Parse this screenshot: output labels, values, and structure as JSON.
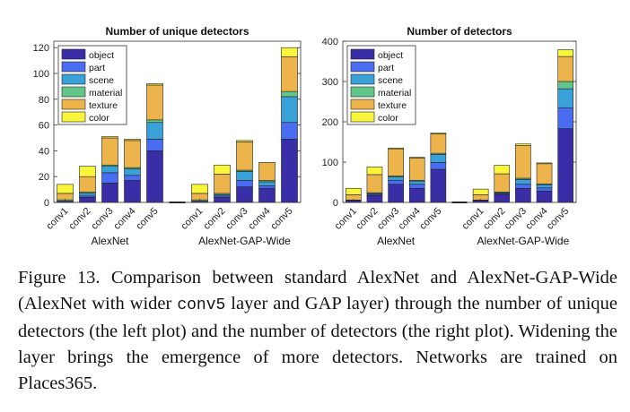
{
  "caption": {
    "p1": "Figure 13. Comparison between standard AlexNet and AlexNet-GAP-Wide (AlexNet with wider ",
    "code": "conv5",
    "p2": " layer and GAP layer) through the number of unique detectors (the left plot) and the number of detectors (the right plot). Widening the layer brings the emergence of more detectors. Networks are trained on Places365."
  },
  "colors": {
    "object": "#3a2ea8",
    "part": "#4a6cf0",
    "scene": "#3aa0d8",
    "material": "#62c58a",
    "texture": "#ecb44a",
    "color": "#f8f53a"
  },
  "chart_data": [
    {
      "type": "bar",
      "stacked": true,
      "title": "Number of unique detectors",
      "ylim": [
        0,
        125
      ],
      "yticks": [
        0,
        20,
        40,
        60,
        80,
        100,
        120
      ],
      "legend_position": "top-left",
      "groups": [
        "AlexNet",
        "AlexNet-GAP-Wide"
      ],
      "categories": [
        "conv1",
        "conv2",
        "conv3",
        "conv4",
        "conv5",
        "conv1",
        "conv2",
        "conv3",
        "conv4",
        "conv5"
      ],
      "series": [
        {
          "name": "object",
          "values": [
            1,
            4,
            15,
            17,
            40,
            1,
            4,
            12,
            11,
            49
          ]
        },
        {
          "name": "part",
          "values": [
            0,
            1,
            8,
            4,
            9,
            0,
            1,
            5,
            2,
            13
          ]
        },
        {
          "name": "scene",
          "values": [
            0,
            2,
            5,
            5,
            13,
            0,
            1,
            7,
            3,
            20
          ]
        },
        {
          "name": "material",
          "values": [
            1,
            1,
            1,
            1,
            2,
            1,
            1,
            1,
            1,
            4
          ]
        },
        {
          "name": "texture",
          "values": [
            5,
            12,
            21,
            21,
            27,
            5,
            15,
            22,
            14,
            27
          ]
        },
        {
          "name": "color",
          "values": [
            7,
            8,
            1,
            1,
            1,
            7,
            7,
            1,
            0,
            7
          ]
        }
      ]
    },
    {
      "type": "bar",
      "stacked": true,
      "title": "Number of detectors",
      "ylim": [
        0,
        400
      ],
      "yticks": [
        0,
        100,
        200,
        300,
        400
      ],
      "legend_position": "top-left",
      "groups": [
        "AlexNet",
        "AlexNet-GAP-Wide"
      ],
      "categories": [
        "conv1",
        "conv2",
        "conv3",
        "conv4",
        "conv5",
        "conv1",
        "conv2",
        "conv3",
        "conv4",
        "conv5"
      ],
      "series": [
        {
          "name": "object",
          "values": [
            5,
            17,
            45,
            35,
            82,
            5,
            20,
            35,
            28,
            183
          ]
        },
        {
          "name": "part",
          "values": [
            0,
            3,
            10,
            10,
            17,
            0,
            2,
            10,
            8,
            52
          ]
        },
        {
          "name": "scene",
          "values": [
            0,
            2,
            8,
            8,
            20,
            0,
            2,
            12,
            8,
            47
          ]
        },
        {
          "name": "material",
          "values": [
            1,
            2,
            3,
            2,
            3,
            1,
            2,
            3,
            2,
            18
          ]
        },
        {
          "name": "texture",
          "values": [
            13,
            45,
            67,
            55,
            48,
            13,
            45,
            81,
            50,
            62
          ]
        },
        {
          "name": "color",
          "values": [
            16,
            19,
            2,
            2,
            2,
            14,
            21,
            4,
            2,
            17
          ]
        }
      ]
    }
  ]
}
